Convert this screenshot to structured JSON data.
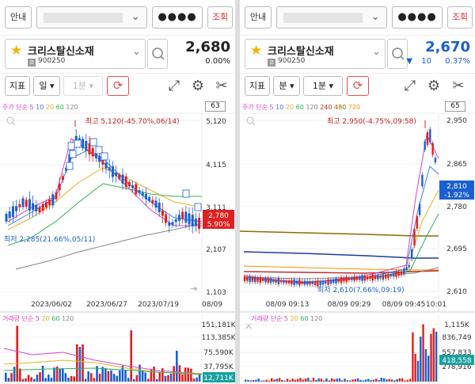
{
  "left": {
    "top": {
      "info_label": "안내",
      "password_mask": "●●●●",
      "search_label": "조회"
    },
    "stock": {
      "name": "크리스탈신소재",
      "market_badge": "코",
      "code": "900250",
      "price": "2,680",
      "change_pct": "0.00%",
      "change_amount": ""
    },
    "toolbar": {
      "indicator_label": "지표",
      "period_label": "일",
      "interval_label": "1분"
    },
    "ma_legend": {
      "prefix": "주가 단순",
      "items": [
        "5",
        "10",
        "20",
        "60",
        "120"
      ]
    },
    "chart_count": "63",
    "annotations": {
      "high": "최고 5,120(-45.70%,06/14)",
      "low": "최저 2,285(21.66%,05/11)",
      "current_price": "2,780",
      "current_pct": "5.90%"
    },
    "y_ticks": [
      "5,120",
      "4,115",
      "3,111",
      "2,107",
      "1,103"
    ],
    "x_ticks": [
      "2023/06/02",
      "2023/06/27",
      "2023/07/19",
      "08/09"
    ],
    "vol_legend": {
      "prefix": "거래량 단순",
      "items": [
        "5",
        "20",
        "60",
        "120"
      ]
    },
    "vol_ticks": [
      "151,181K",
      "113,385K",
      "75,590K",
      "37,795K"
    ],
    "vol_current": "12,711K"
  },
  "right": {
    "top": {
      "info_label": "안내",
      "password_mask": "●●●●",
      "search_label": "조회"
    },
    "stock": {
      "name": "크리스탈신소재",
      "market_badge": "코",
      "code": "900250",
      "price": "2,670",
      "change_pct": "0.37%",
      "change_amount": "10",
      "change_arrow": "▼"
    },
    "toolbar": {
      "indicator_label": "지표",
      "period_label": "분",
      "interval_label": "1분"
    },
    "ma_legend": {
      "prefix": "주가 단순",
      "items": [
        "5",
        "10",
        "20",
        "60",
        "120",
        "240",
        "480",
        "720"
      ]
    },
    "chart_count": "65",
    "annotations": {
      "high": "최고 2,950(-4.75%,09:58)",
      "low": "최저 2,610(7.66%,09:19)",
      "current_price": "2,810",
      "current_pct": "-1.92%"
    },
    "y_ticks": [
      "2,950",
      "2,865",
      "2,780",
      "2,695",
      "2,610"
    ],
    "x_ticks": [
      "08/09 09:13",
      "08/09 09:29",
      "08/09 09:45",
      "10:01"
    ],
    "vol_legend": {
      "prefix": "거래량 단순",
      "items": [
        "5",
        "20",
        "60",
        "120"
      ]
    },
    "vol_ticks": [
      "1,115K",
      "836,749",
      "557,833",
      "278,916"
    ],
    "vol_current": "418,558"
  },
  "colors": {
    "up": "#e02020",
    "down": "#1a5fd0",
    "ma5": "#e040c0",
    "ma10": "#3a7be0",
    "ma20": "#e8b020",
    "ma60": "#30b060",
    "ma120": "#888888",
    "ma240": "#c03030",
    "ma480": "#8a6d00",
    "ma720": "#ff8c00"
  }
}
